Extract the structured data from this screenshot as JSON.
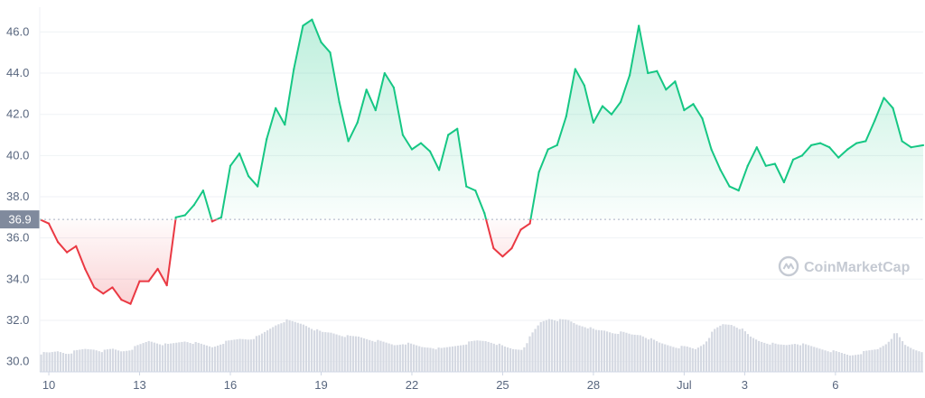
{
  "chart_data": {
    "type": "line",
    "title": "",
    "xlabel": "",
    "ylabel": "",
    "ylim": [
      29.5,
      47.2
    ],
    "y_ticks": [
      "30.0",
      "32.0",
      "34.0",
      "36.0",
      "38.0",
      "40.0",
      "42.0",
      "44.0",
      "46.0"
    ],
    "x_ticks": [
      "10",
      "13",
      "16",
      "19",
      "22",
      "25",
      "28",
      "Jul",
      "3",
      "6"
    ],
    "x_tick_days": [
      0,
      3,
      6,
      9,
      12,
      15,
      18,
      21,
      23,
      26
    ],
    "x_range_days": [
      -0.3,
      28.9
    ],
    "baseline": 36.9,
    "baseline_label": "36.9",
    "grid": true,
    "colors": {
      "up": "#16c784",
      "down": "#ea3943",
      "volume": "#d5d9e2",
      "baseline_tag": "#808a9d"
    },
    "series": [
      {
        "x": [
          -0.3,
          0.0,
          0.3,
          0.6,
          0.9,
          1.2,
          1.5,
          1.8,
          2.1,
          2.4,
          2.7,
          3.0,
          3.3,
          3.6,
          3.9,
          4.2,
          4.5,
          4.8,
          5.1,
          5.4,
          5.7,
          6.0,
          6.3,
          6.6,
          6.9,
          7.2,
          7.5,
          7.8,
          8.1,
          8.4,
          8.7,
          9.0,
          9.3,
          9.6,
          9.9,
          10.2,
          10.5,
          10.8,
          11.1,
          11.4,
          11.7,
          12.0,
          12.3,
          12.6,
          12.9,
          13.2,
          13.5,
          13.8,
          14.1,
          14.4,
          14.7,
          15.0,
          15.3,
          15.6,
          15.9,
          16.2,
          16.5,
          16.8,
          17.1,
          17.4,
          17.7,
          18.0,
          18.3,
          18.6,
          18.9,
          19.2,
          19.5,
          19.8,
          20.1,
          20.4,
          20.7,
          21.0,
          21.3,
          21.6,
          21.9,
          22.2,
          22.5,
          22.8,
          23.1,
          23.4,
          23.7,
          24.0,
          24.3,
          24.6,
          24.9,
          25.2,
          25.5,
          25.8,
          26.1,
          26.4,
          26.7,
          27.0,
          27.3,
          27.6,
          27.9,
          28.2,
          28.5,
          28.9
        ],
        "values": [
          36.9,
          36.7,
          35.8,
          35.3,
          35.6,
          34.5,
          33.6,
          33.3,
          33.6,
          33.0,
          32.8,
          33.9,
          33.9,
          34.5,
          33.7,
          37.0,
          37.1,
          37.6,
          38.3,
          36.8,
          37.0,
          39.5,
          40.1,
          39.0,
          38.5,
          40.8,
          42.3,
          41.5,
          44.2,
          46.3,
          46.6,
          45.5,
          45.0,
          42.6,
          40.7,
          41.6,
          43.2,
          42.2,
          44.0,
          43.3,
          41.0,
          40.3,
          40.6,
          40.2,
          39.3,
          41.0,
          41.3,
          38.5,
          38.3,
          37.2,
          35.5,
          35.1,
          35.5,
          36.4,
          36.7,
          39.2,
          40.3,
          40.5,
          41.9,
          44.2,
          43.4,
          41.6,
          42.4,
          42.0,
          42.6,
          43.9,
          46.3,
          44.0,
          44.1,
          43.2,
          43.6,
          42.2,
          42.5,
          41.8,
          40.3,
          39.3,
          38.5,
          38.3,
          39.5,
          40.4,
          39.5,
          39.6,
          38.7,
          39.8,
          40.0,
          40.5,
          40.6,
          40.4,
          39.9,
          40.3,
          40.6,
          40.7,
          41.7,
          42.8,
          42.3,
          40.7,
          40.4,
          40.5
        ]
      }
    ],
    "volume_range": [
      29.5,
      32.3
    ],
    "volume": [
      30.4,
      30.4,
      30.5,
      30.4,
      30.5,
      30.6,
      30.6,
      30.5,
      30.6,
      30.5,
      30.6,
      30.8,
      31.0,
      30.9,
      30.8,
      30.9,
      31.0,
      30.9,
      30.8,
      30.7,
      30.9,
      31.0,
      31.1,
      31.1,
      31.2,
      31.5,
      31.8,
      32.0,
      31.9,
      31.8,
      31.6,
      31.4,
      31.4,
      31.3,
      31.2,
      31.2,
      31.1,
      31.0,
      30.9,
      30.8,
      30.9,
      30.8,
      30.7,
      30.7,
      30.6,
      30.7,
      30.8,
      30.9,
      31.0,
      31.0,
      30.9,
      30.7,
      30.6,
      30.6,
      31.3,
      31.9,
      32.1,
      32.0,
      32.0,
      31.8,
      31.7,
      31.5,
      31.5,
      31.4,
      31.4,
      31.3,
      31.3,
      31.1,
      30.9,
      30.8,
      30.7,
      30.7,
      30.6,
      30.9,
      31.5,
      31.8,
      31.8,
      31.6,
      31.2,
      31.0,
      30.9,
      30.8,
      30.8,
      30.9,
      30.8,
      30.7,
      30.6,
      30.5,
      30.4,
      30.3,
      30.4,
      30.5,
      30.6,
      30.9,
      31.4,
      30.8,
      30.6,
      30.5
    ]
  },
  "watermark": {
    "text": "CoinMarketCap",
    "icon": "coinmarketcap-logo"
  }
}
